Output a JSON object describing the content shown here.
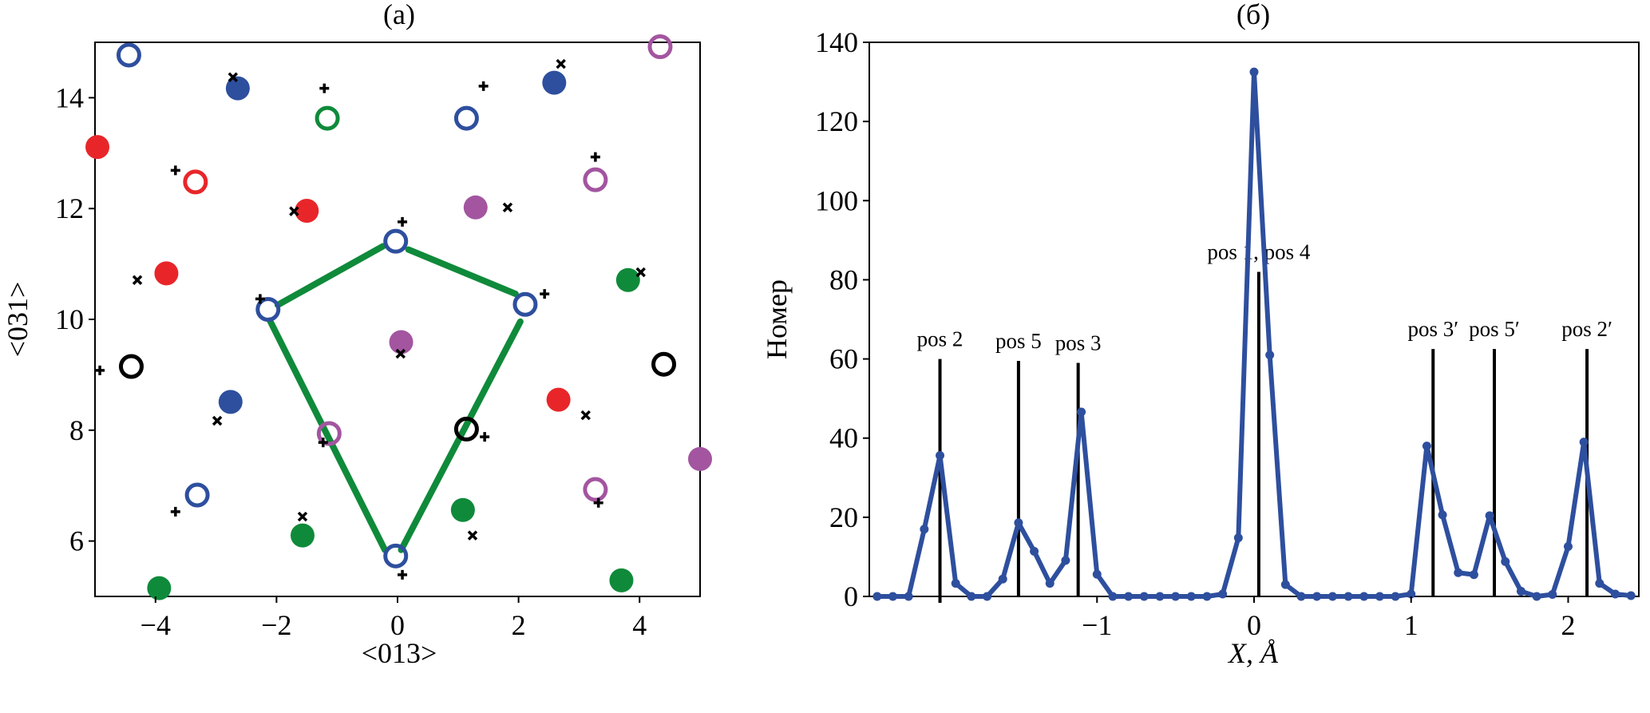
{
  "colors": {
    "blue": "#2e4f9e",
    "red": "#e8262a",
    "green": "#0f8a3a",
    "purple": "#a355a0",
    "black": "#000000"
  },
  "chart_data": [
    {
      "type": "scatter",
      "title": "(a)",
      "xlabel": "<013>",
      "ylabel": "<031>",
      "xlim": [
        -5,
        5
      ],
      "ylim": [
        5,
        15
      ],
      "xticks": [
        -4,
        -2,
        0,
        2,
        4
      ],
      "xtick_labels": [
        "−4",
        "−2",
        "0",
        "2",
        "4"
      ],
      "yticks": [
        6,
        8,
        10,
        12,
        14
      ],
      "ytick_labels": [
        "6",
        "8",
        "10",
        "12",
        "14"
      ],
      "grid": false,
      "circles": [
        {
          "x": -4.44,
          "y": 14.77,
          "color": "blue",
          "filled": false
        },
        {
          "x": -2.64,
          "y": 14.17,
          "color": "blue",
          "filled": true
        },
        {
          "x": -1.16,
          "y": 13.63,
          "color": "green",
          "filled": false
        },
        {
          "x": 1.14,
          "y": 13.63,
          "color": "blue",
          "filled": false
        },
        {
          "x": 2.59,
          "y": 14.27,
          "color": "blue",
          "filled": true
        },
        {
          "x": 4.34,
          "y": 14.92,
          "color": "purple",
          "filled": false
        },
        {
          "x": -4.96,
          "y": 13.11,
          "color": "red",
          "filled": true
        },
        {
          "x": -3.34,
          "y": 12.48,
          "color": "red",
          "filled": false
        },
        {
          "x": -1.5,
          "y": 11.96,
          "color": "red",
          "filled": true
        },
        {
          "x": 1.29,
          "y": 12.02,
          "color": "purple",
          "filled": true
        },
        {
          "x": 3.27,
          "y": 12.52,
          "color": "purple",
          "filled": false
        },
        {
          "x": -0.03,
          "y": 11.41,
          "color": "blue",
          "filled": false
        },
        {
          "x": -3.82,
          "y": 10.83,
          "color": "red",
          "filled": true
        },
        {
          "x": 3.81,
          "y": 10.71,
          "color": "green",
          "filled": true
        },
        {
          "x": -2.14,
          "y": 10.18,
          "color": "blue",
          "filled": false
        },
        {
          "x": 2.11,
          "y": 10.27,
          "color": "blue",
          "filled": false
        },
        {
          "x": 0.06,
          "y": 9.59,
          "color": "purple",
          "filled": true
        },
        {
          "x": -4.4,
          "y": 9.15,
          "color": "black",
          "filled": false
        },
        {
          "x": 4.4,
          "y": 9.19,
          "color": "black",
          "filled": false
        },
        {
          "x": -2.76,
          "y": 8.51,
          "color": "blue",
          "filled": true
        },
        {
          "x": 2.66,
          "y": 8.55,
          "color": "red",
          "filled": true
        },
        {
          "x": -1.13,
          "y": 7.94,
          "color": "purple",
          "filled": false
        },
        {
          "x": 1.14,
          "y": 8.02,
          "color": "black",
          "filled": false
        },
        {
          "x": 5.0,
          "y": 7.48,
          "color": "purple",
          "filled": true
        },
        {
          "x": -3.31,
          "y": 6.83,
          "color": "blue",
          "filled": false
        },
        {
          "x": 3.27,
          "y": 6.93,
          "color": "purple",
          "filled": false
        },
        {
          "x": 1.08,
          "y": 6.56,
          "color": "green",
          "filled": true
        },
        {
          "x": -1.57,
          "y": 6.1,
          "color": "green",
          "filled": true
        },
        {
          "x": -0.03,
          "y": 5.73,
          "color": "blue",
          "filled": false
        },
        {
          "x": -3.94,
          "y": 5.15,
          "color": "green",
          "filled": true
        },
        {
          "x": 3.7,
          "y": 5.29,
          "color": "green",
          "filled": true
        }
      ],
      "plus_markers": [
        {
          "x": -1.21,
          "y": 14.17
        },
        {
          "x": 1.42,
          "y": 14.21
        },
        {
          "x": -3.67,
          "y": 12.69
        },
        {
          "x": 3.27,
          "y": 12.93
        },
        {
          "x": 0.08,
          "y": 11.76
        },
        {
          "x": -2.27,
          "y": 10.37
        },
        {
          "x": 2.43,
          "y": 10.46
        },
        {
          "x": -4.92,
          "y": 9.08
        },
        {
          "x": -1.23,
          "y": 7.78
        },
        {
          "x": 1.44,
          "y": 7.88
        },
        {
          "x": -3.67,
          "y": 6.53
        },
        {
          "x": 3.32,
          "y": 6.69
        },
        {
          "x": 0.08,
          "y": 5.39
        }
      ],
      "cross_markers": [
        {
          "x": -2.72,
          "y": 14.37
        },
        {
          "x": 2.7,
          "y": 14.61
        },
        {
          "x": -1.71,
          "y": 11.95
        },
        {
          "x": 1.82,
          "y": 12.02
        },
        {
          "x": -4.3,
          "y": 10.71
        },
        {
          "x": 4.02,
          "y": 10.85
        },
        {
          "x": 0.05,
          "y": 9.38
        },
        {
          "x": -2.98,
          "y": 8.17
        },
        {
          "x": 3.11,
          "y": 8.27
        },
        {
          "x": -1.57,
          "y": 6.44
        },
        {
          "x": 1.24,
          "y": 6.1
        }
      ],
      "polygon_segments": [
        {
          "x1": -1.98,
          "y1": 10.26,
          "x2": -0.24,
          "y2": 11.32
        },
        {
          "x1": 0.18,
          "y1": 11.26,
          "x2": 1.95,
          "y2": 10.46
        },
        {
          "x1": -2.11,
          "y1": 9.98,
          "x2": -0.21,
          "y2": 5.84
        },
        {
          "x1": 0.06,
          "y1": 5.84,
          "x2": 2.03,
          "y2": 9.96
        }
      ],
      "polygon_color": "green"
    },
    {
      "type": "line",
      "title": "(б)",
      "xlabel": "X, Å",
      "ylabel": "Номер",
      "xlim": [
        -2.45,
        2.45
      ],
      "ylim": [
        0,
        140
      ],
      "xticks": [
        -1,
        0,
        1,
        2
      ],
      "xtick_labels": [
        "−1",
        "0",
        "1",
        "2"
      ],
      "yticks": [
        0,
        20,
        40,
        60,
        80,
        100,
        120,
        140
      ],
      "ytick_labels": [
        "0",
        "20",
        "40",
        "60",
        "80",
        "100",
        "120",
        "140"
      ],
      "grid": false,
      "series_color": "blue",
      "x": [
        -2.4,
        -2.3,
        -2.2,
        -2.1,
        -2.0,
        -1.9,
        -1.8,
        -1.7,
        -1.6,
        -1.5,
        -1.4,
        -1.3,
        -1.2,
        -1.1,
        -1.0,
        -0.9,
        -0.8,
        -0.7,
        -0.6,
        -0.5,
        -0.4,
        -0.3,
        -0.2,
        -0.1,
        0.0,
        0.1,
        0.2,
        0.3,
        0.4,
        0.5,
        0.6,
        0.7,
        0.8,
        0.9,
        1.0,
        1.1,
        1.2,
        1.3,
        1.4,
        1.5,
        1.6,
        1.7,
        1.8,
        1.9,
        2.0,
        2.1,
        2.2,
        2.3,
        2.4
      ],
      "y": [
        0,
        0,
        0,
        17,
        35.6,
        3.3,
        0,
        0,
        4.4,
        18.6,
        11.4,
        3.3,
        9.1,
        46.6,
        5.6,
        0,
        0,
        0,
        0,
        0,
        0,
        0,
        0.6,
        14.8,
        132.5,
        61,
        3,
        0,
        0,
        0,
        0,
        0,
        0,
        0,
        0.6,
        38,
        20.6,
        6,
        5.5,
        20.4,
        8.8,
        1.3,
        0,
        0.5,
        12.6,
        39,
        3.3,
        0.6,
        0.2
      ],
      "position_lines": [
        {
          "label": "pos 2",
          "x": -2.0,
          "top": 60
        },
        {
          "label": "pos 5",
          "x": -1.5,
          "top": 59.5
        },
        {
          "label": "pos 3",
          "x": -1.12,
          "top": 59
        },
        {
          "label": "pos 1,   pos 4",
          "x": 0.03,
          "top": 82
        },
        {
          "label": "pos 3′",
          "x": 1.14,
          "top": 62.5
        },
        {
          "label": "pos 5′",
          "x": 1.53,
          "top": 62.5
        },
        {
          "label": "pos 2′",
          "x": 2.12,
          "top": 62.5
        }
      ]
    }
  ]
}
